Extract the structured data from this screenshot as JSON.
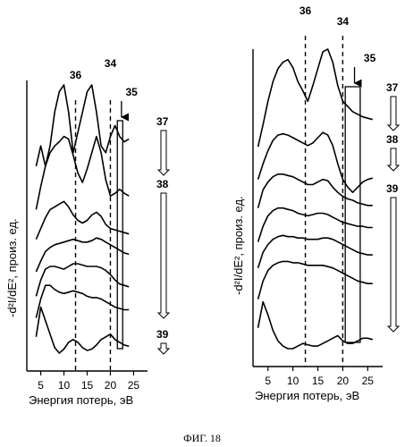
{
  "figure_caption": "ФИГ. 18",
  "chart_data": [
    {
      "type": "line",
      "panel": "left",
      "xlabel": "Энергия потерь, эВ",
      "ylabel": "-d²I/dE², произ. ед.",
      "xticks": [
        5,
        10,
        15,
        20,
        25
      ],
      "xlim": [
        2,
        28
      ],
      "grid": false,
      "legend": "none",
      "annotations": {
        "marker_36": {
          "label": "36",
          "x": 12.5,
          "style": "dashed"
        },
        "marker_34": {
          "label": "34",
          "x": 20,
          "style": "dashed"
        },
        "marker_35": {
          "label": "35",
          "x_range": [
            21.5,
            22.5
          ],
          "style": "box"
        },
        "label_37": "37",
        "label_38": "38",
        "label_39": "39"
      },
      "series": [
        {
          "x": [
            4,
            5,
            6,
            7,
            8,
            9,
            10,
            11,
            12,
            13,
            14,
            15,
            16,
            17,
            18,
            19,
            20,
            21,
            22,
            23,
            24
          ],
          "values": [
            150,
            165,
            150,
            165,
            190,
            205,
            210,
            190,
            160,
            175,
            190,
            205,
            210,
            190,
            165,
            160,
            172,
            180,
            172,
            168,
            170
          ]
        },
        {
          "x": [
            4,
            5,
            6,
            7,
            8,
            9,
            10,
            11,
            12,
            13,
            14,
            15,
            16,
            17,
            18,
            19,
            20,
            21,
            22,
            23,
            24
          ],
          "values": [
            118,
            135,
            150,
            160,
            165,
            168,
            172,
            170,
            158,
            145,
            138,
            148,
            160,
            172,
            160,
            140,
            128,
            130,
            133,
            130,
            128
          ]
        },
        {
          "x": [
            4,
            5,
            6,
            7,
            8,
            9,
            10,
            11,
            12,
            13,
            14,
            15,
            16,
            17,
            18,
            19,
            20,
            21,
            22,
            23,
            24
          ],
          "values": [
            96,
            104,
            112,
            118,
            120,
            122,
            124,
            120,
            114,
            110,
            108,
            110,
            114,
            116,
            113,
            107,
            104,
            103,
            102,
            101,
            100
          ]
        },
        {
          "x": [
            4,
            5,
            6,
            7,
            8,
            9,
            10,
            11,
            12,
            13,
            14,
            15,
            16,
            17,
            18,
            19,
            20,
            21,
            22,
            23,
            24
          ],
          "values": [
            72,
            80,
            87,
            90,
            92,
            93,
            94,
            95,
            96,
            95,
            94,
            94,
            95,
            97,
            96,
            94,
            92,
            90,
            88,
            86,
            85
          ]
        },
        {
          "x": [
            4,
            5,
            6,
            7,
            8,
            9,
            10,
            11,
            12,
            13,
            14,
            15,
            16,
            17,
            18,
            19,
            20,
            21,
            22,
            23,
            24
          ],
          "values": [
            54,
            66,
            74,
            76,
            76,
            75,
            74,
            76,
            78,
            78,
            77,
            76,
            76,
            76,
            75,
            73,
            70,
            66,
            63,
            62,
            61
          ]
        },
        {
          "x": [
            4,
            5,
            6,
            7,
            8,
            9,
            10,
            11,
            12,
            13,
            14,
            15,
            16,
            17,
            18,
            19,
            20,
            21,
            22,
            23,
            24
          ],
          "values": [
            38,
            52,
            62,
            62,
            59,
            57,
            56,
            57,
            58,
            57,
            56,
            54,
            53,
            53,
            52,
            50,
            48,
            46,
            45,
            44,
            44
          ]
        },
        {
          "x": [
            4,
            5,
            6,
            7,
            8,
            9,
            10,
            11,
            12,
            13,
            14,
            15,
            16,
            17,
            18,
            19,
            20,
            21,
            22,
            23,
            24
          ],
          "values": [
            24,
            46,
            36,
            26,
            16,
            12,
            15,
            20,
            22,
            20,
            16,
            14,
            15,
            18,
            22,
            24,
            26,
            22,
            20,
            18,
            17
          ]
        }
      ]
    },
    {
      "type": "line",
      "panel": "right",
      "xlabel": "Энергия потерь, эВ",
      "ylabel": "-d²I/dE², произ. ед.",
      "xticks": [
        5,
        10,
        15,
        20,
        25
      ],
      "xlim": [
        2,
        28
      ],
      "grid": false,
      "legend": "none",
      "annotations": {
        "marker_36": {
          "label": "36",
          "x": 12.5,
          "style": "dashed"
        },
        "marker_34": {
          "label": "34",
          "x": 20,
          "style": "dashed"
        },
        "marker_35": {
          "label": "35",
          "x_range": [
            20.5,
            23.5
          ],
          "style": "box"
        },
        "label_37": "37",
        "label_38": "38",
        "label_39": "39"
      },
      "series": [
        {
          "x": [
            3,
            4,
            5,
            6,
            7,
            8,
            9,
            10,
            11,
            12,
            13,
            14,
            15,
            16,
            17,
            18,
            19,
            20,
            21,
            22,
            23,
            24,
            25,
            26
          ],
          "values": [
            165,
            182,
            200,
            215,
            225,
            230,
            232,
            226,
            215,
            208,
            200,
            212,
            225,
            238,
            240,
            230,
            212,
            200,
            196,
            192,
            190,
            188,
            187,
            186
          ]
        },
        {
          "x": [
            3,
            4,
            5,
            6,
            7,
            8,
            9,
            10,
            11,
            12,
            13,
            14,
            15,
            16,
            17,
            18,
            19,
            20,
            21,
            22,
            23,
            24,
            25,
            26
          ],
          "values": [
            140,
            152,
            162,
            170,
            174,
            175,
            174,
            172,
            170,
            168,
            166,
            168,
            172,
            176,
            174,
            166,
            152,
            140,
            134,
            130,
            134,
            138,
            140,
            141
          ]
        },
        {
          "x": [
            3,
            4,
            5,
            6,
            7,
            8,
            9,
            10,
            11,
            12,
            13,
            14,
            15,
            16,
            17,
            18,
            19,
            20,
            21,
            22,
            23,
            24,
            25,
            26
          ],
          "values": [
            118,
            132,
            138,
            142,
            144,
            144,
            143,
            142,
            140,
            138,
            136,
            136,
            138,
            140,
            139,
            134,
            130,
            127,
            125,
            124,
            122,
            121,
            120,
            120
          ]
        },
        {
          "x": [
            3,
            4,
            5,
            6,
            7,
            8,
            9,
            10,
            11,
            12,
            13,
            14,
            15,
            16,
            17,
            18,
            19,
            20,
            21,
            22,
            23,
            24,
            25,
            26
          ],
          "values": [
            92,
            104,
            112,
            116,
            118,
            118,
            117,
            116,
            114,
            113,
            112,
            113,
            114,
            114,
            113,
            111,
            109,
            107,
            106,
            105,
            104,
            104,
            103,
            103
          ]
        },
        {
          "x": [
            3,
            4,
            5,
            6,
            7,
            8,
            9,
            10,
            11,
            12,
            13,
            14,
            15,
            16,
            17,
            18,
            19,
            20,
            21,
            22,
            23,
            24,
            25,
            26
          ],
          "values": [
            72,
            84,
            90,
            94,
            96,
            97,
            96,
            96,
            95,
            95,
            94,
            94,
            94,
            95,
            95,
            94,
            92,
            90,
            88,
            86,
            84,
            83,
            82,
            82
          ]
        },
        {
          "x": [
            3,
            4,
            5,
            6,
            7,
            8,
            9,
            10,
            11,
            12,
            13,
            14,
            15,
            16,
            17,
            18,
            19,
            20,
            21,
            22,
            23,
            24,
            25,
            26
          ],
          "values": [
            48,
            62,
            70,
            74,
            76,
            77,
            77,
            76,
            76,
            75,
            74,
            74,
            74,
            74,
            73,
            72,
            70,
            68,
            66,
            64,
            62,
            61,
            60,
            60
          ]
        },
        {
          "x": [
            3,
            4,
            5,
            6,
            7,
            8,
            9,
            10,
            11,
            12,
            13,
            14,
            15,
            16,
            17,
            18,
            19,
            20,
            21,
            22,
            23,
            24,
            25,
            26
          ],
          "values": [
            26,
            46,
            36,
            24,
            16,
            12,
            10,
            10,
            12,
            14,
            13,
            12,
            12,
            14,
            16,
            18,
            20,
            16,
            14,
            14,
            16,
            18,
            18,
            17
          ]
        }
      ]
    }
  ]
}
